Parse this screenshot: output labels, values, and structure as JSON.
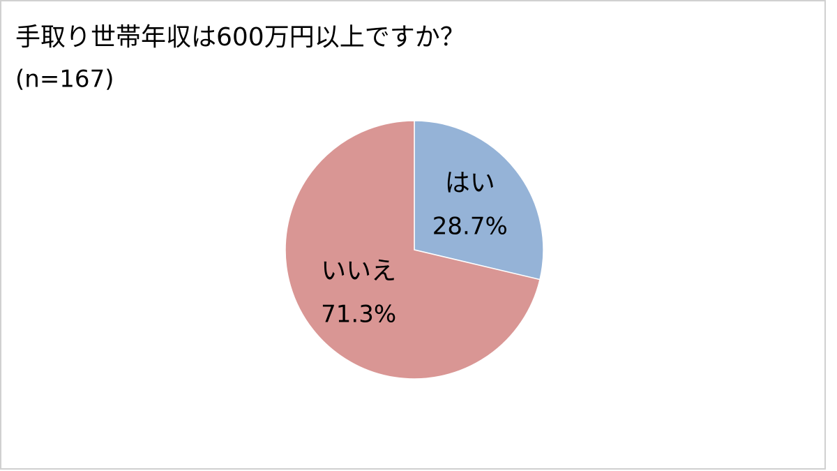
{
  "chart_data": {
    "type": "pie",
    "title": "手取り世帯年収は600万円以上ですか？",
    "subtitle": "(n=167)",
    "categories": [
      "はい",
      "いいえ"
    ],
    "values": [
      28.7,
      71.3
    ],
    "value_labels": [
      "28.7%",
      "71.3%"
    ],
    "colors": [
      "#95b3d7",
      "#d99694"
    ]
  }
}
